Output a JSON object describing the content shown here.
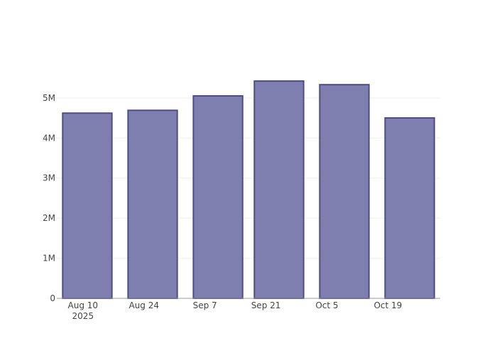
{
  "chart_data": {
    "type": "bar",
    "title": "",
    "xlabel": "",
    "ylabel": "",
    "x": [
      "2025-08-11",
      "2025-08-26",
      "2025-09-10",
      "2025-09-24",
      "2025-10-09",
      "2025-10-24"
    ],
    "values": [
      4620000,
      4690000,
      5050000,
      5420000,
      5330000,
      4500000
    ],
    "xlim": [
      "2025-08-04",
      "2025-10-31"
    ],
    "ylim": [
      0,
      5670000
    ],
    "x_ticks": [
      {
        "date": "2025-08-10",
        "label": "Aug 10",
        "sublabel": "2025"
      },
      {
        "date": "2025-08-24",
        "label": "Aug 24"
      },
      {
        "date": "2025-09-07",
        "label": "Sep 7"
      },
      {
        "date": "2025-09-21",
        "label": "Sep 21"
      },
      {
        "date": "2025-10-05",
        "label": "Oct 5"
      },
      {
        "date": "2025-10-19",
        "label": "Oct 19"
      }
    ],
    "y_ticks": [
      {
        "value": 0,
        "label": "0"
      },
      {
        "value": 1000000,
        "label": "1M"
      },
      {
        "value": 2000000,
        "label": "2M"
      },
      {
        "value": 3000000,
        "label": "3M"
      },
      {
        "value": 4000000,
        "label": "4M"
      },
      {
        "value": 5000000,
        "label": "5M"
      }
    ],
    "grid": true,
    "legend": "none",
    "colors": {
      "fill": "#7e7fae",
      "outline": "#4c4c8c",
      "grid": "#eeeeee",
      "axis": "#999999"
    }
  }
}
